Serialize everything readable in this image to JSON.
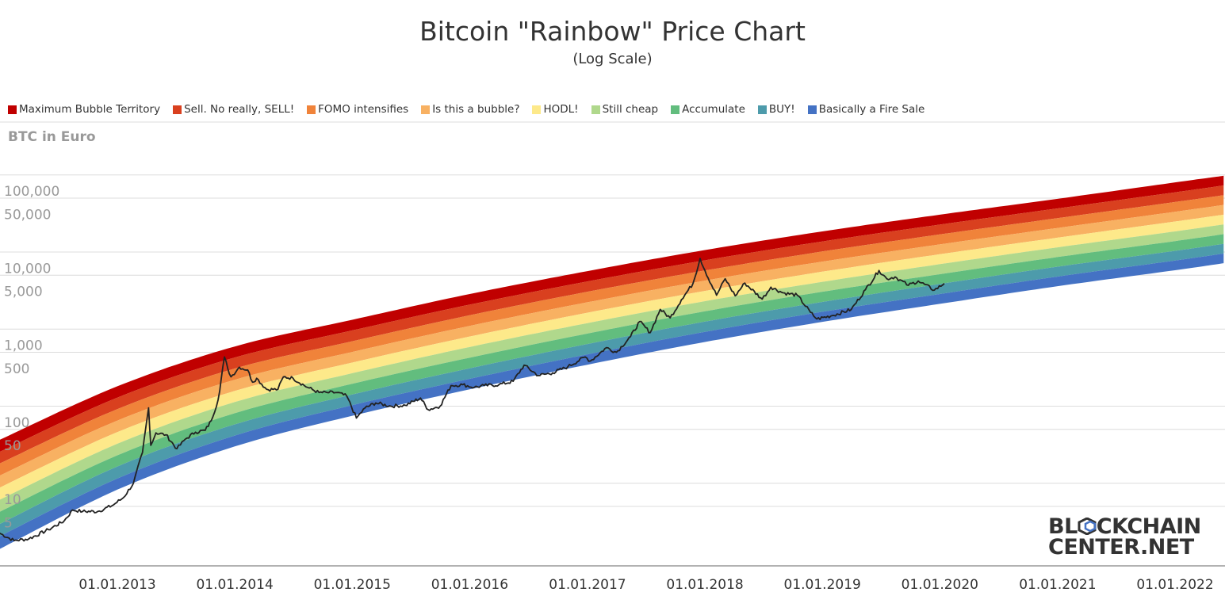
{
  "chart_data": {
    "type": "area",
    "title": "Bitcoin \"Rainbow\" Price Chart",
    "subtitle": "(Log Scale)",
    "ylabel": "BTC in Euro",
    "xlabel": "",
    "y_scale": "log",
    "ylim": [
      1.1,
      350000
    ],
    "xlim": [
      "2012-01-01",
      "2022-06-01"
    ],
    "grid": "horizontal",
    "legend_position": "top-left",
    "y_ticks": [
      {
        "value": 100000,
        "label": "100,000"
      },
      {
        "value": 50000,
        "label": "50,000"
      },
      {
        "value": 10000,
        "label": "10,000"
      },
      {
        "value": 5000,
        "label": "5,000"
      },
      {
        "value": 1000,
        "label": "1,000"
      },
      {
        "value": 500,
        "label": "500"
      },
      {
        "value": 100,
        "label": "100"
      },
      {
        "value": 50,
        "label": "50"
      },
      {
        "value": 10,
        "label": "10"
      },
      {
        "value": 5,
        "label": "5"
      }
    ],
    "x_ticks": [
      {
        "date": "2013-01-01",
        "label": "01.01.2013"
      },
      {
        "date": "2014-01-01",
        "label": "01.01.2014"
      },
      {
        "date": "2015-01-01",
        "label": "01.01.2015"
      },
      {
        "date": "2016-01-01",
        "label": "01.01.2016"
      },
      {
        "date": "2017-01-01",
        "label": "01.01.2017"
      },
      {
        "date": "2018-01-01",
        "label": "01.01.2018"
      },
      {
        "date": "2019-01-01",
        "label": "01.01.2019"
      },
      {
        "date": "2020-01-01",
        "label": "01.01.2020"
      },
      {
        "date": "2021-01-01",
        "label": "01.01.2021"
      },
      {
        "date": "2022-01-01",
        "label": "01.01.2022"
      }
    ],
    "bands": [
      {
        "name": "Maximum Bubble Territory",
        "color": "#c00000"
      },
      {
        "name": "Sell. No really, SELL!",
        "color": "#d9401f"
      },
      {
        "name": "FOMO intensifies",
        "color": "#f0833a"
      },
      {
        "name": "Is this a bubble?",
        "color": "#f8b162"
      },
      {
        "name": "HODL!",
        "color": "#fde98a"
      },
      {
        "name": "Still cheap",
        "color": "#b0d88c"
      },
      {
        "name": "Accumulate",
        "color": "#62bd7e"
      },
      {
        "name": "BUY!",
        "color": "#4d9bab"
      },
      {
        "name": "Basically a Fire Sale",
        "color": "#4472c4"
      }
    ],
    "band_boundaries": [
      {
        "date": "2012-01-01",
        "values": [
          73,
          51,
          36,
          25,
          17.5,
          12.2,
          8.5,
          5.9,
          4.1,
          2.8
        ]
      },
      {
        "date": "2013-01-01",
        "values": [
          362,
          258,
          183,
          130,
          92,
          65,
          46,
          33,
          23,
          16.5
        ]
      },
      {
        "date": "2014-01-01",
        "values": [
          1190,
          855,
          615,
          440,
          315,
          226,
          162,
          116,
          83,
          60
        ]
      },
      {
        "date": "2015-01-01",
        "values": [
          2640,
          1920,
          1390,
          1010,
          735,
          535,
          390,
          283,
          206,
          150
        ]
      },
      {
        "date": "2016-01-01",
        "values": [
          5700,
          4150,
          3020,
          2200,
          1600,
          1170,
          850,
          620,
          452,
          330
        ]
      },
      {
        "date": "2017-01-01",
        "values": [
          11300,
          8300,
          6100,
          4450,
          3260,
          2390,
          1750,
          1280,
          940,
          690
        ]
      },
      {
        "date": "2018-01-01",
        "values": [
          21200,
          15600,
          11500,
          8500,
          6250,
          4600,
          3400,
          2500,
          1840,
          1360
        ]
      },
      {
        "date": "2019-01-01",
        "values": [
          37000,
          27400,
          20300,
          15000,
          11100,
          8200,
          6100,
          4500,
          3350,
          2480
        ]
      },
      {
        "date": "2020-01-01",
        "values": [
          61000,
          45400,
          33800,
          25100,
          18700,
          13900,
          10300,
          7700,
          5700,
          4250
        ]
      },
      {
        "date": "2021-01-01",
        "values": [
          98000,
          73500,
          55000,
          41000,
          30700,
          23000,
          17200,
          12900,
          9600,
          7200
        ]
      },
      {
        "date": "2022-01-01",
        "values": [
          160000,
          119000,
          89000,
          66500,
          49700,
          37000,
          27700,
          20700,
          15500,
          11600
        ]
      },
      {
        "date": "2022-06-01",
        "values": [
          195000,
          146000,
          109000,
          81500,
          61000,
          45600,
          34100,
          25500,
          19100,
          14300
        ]
      }
    ],
    "series": [
      {
        "values": [
          [
            "2012-01-01",
            4.5
          ],
          [
            "2012-02-15",
            3.6
          ],
          [
            "2012-04-01",
            3.8
          ],
          [
            "2012-06-01",
            5.0
          ],
          [
            "2012-07-20",
            6.5
          ],
          [
            "2012-08-15",
            9.0
          ],
          [
            "2012-09-15",
            8.6
          ],
          [
            "2012-11-01",
            8.6
          ],
          [
            "2012-12-15",
            10.2
          ],
          [
            "2013-01-20",
            13
          ],
          [
            "2013-02-20",
            20
          ],
          [
            "2013-03-20",
            50
          ],
          [
            "2013-04-08",
            190
          ],
          [
            "2013-04-15",
            62
          ],
          [
            "2013-05-01",
            90
          ],
          [
            "2013-06-01",
            85
          ],
          [
            "2013-07-05",
            56
          ],
          [
            "2013-08-01",
            75
          ],
          [
            "2013-09-01",
            92
          ],
          [
            "2013-10-01",
            97
          ],
          [
            "2013-10-20",
            130
          ],
          [
            "2013-11-10",
            240
          ],
          [
            "2013-11-30",
            870
          ],
          [
            "2013-12-10",
            620
          ],
          [
            "2013-12-20",
            480
          ],
          [
            "2014-01-15",
            640
          ],
          [
            "2014-02-10",
            590
          ],
          [
            "2014-02-25",
            410
          ],
          [
            "2014-03-10",
            460
          ],
          [
            "2014-04-10",
            330
          ],
          [
            "2014-05-15",
            330
          ],
          [
            "2014-06-01",
            480
          ],
          [
            "2014-07-01",
            460
          ],
          [
            "2014-08-15",
            350
          ],
          [
            "2014-09-20",
            300
          ],
          [
            "2014-10-15",
            300
          ],
          [
            "2014-11-15",
            300
          ],
          [
            "2014-12-15",
            270
          ],
          [
            "2015-01-14",
            140
          ],
          [
            "2015-02-10",
            190
          ],
          [
            "2015-03-15",
            220
          ],
          [
            "2015-05-01",
            200
          ],
          [
            "2015-06-15",
            205
          ],
          [
            "2015-08-01",
            255
          ],
          [
            "2015-08-25",
            180
          ],
          [
            "2015-10-01",
            200
          ],
          [
            "2015-11-04",
            370
          ],
          [
            "2015-12-10",
            380
          ],
          [
            "2016-01-15",
            350
          ],
          [
            "2016-02-15",
            370
          ],
          [
            "2016-04-01",
            380
          ],
          [
            "2016-05-15",
            420
          ],
          [
            "2016-06-18",
            680
          ],
          [
            "2016-08-01",
            500
          ],
          [
            "2016-09-15",
            540
          ],
          [
            "2016-11-01",
            650
          ],
          [
            "2016-12-25",
            870
          ],
          [
            "2017-01-10",
            770
          ],
          [
            "2017-03-01",
            1150
          ],
          [
            "2017-04-01",
            1000
          ],
          [
            "2017-05-15",
            1600
          ],
          [
            "2017-06-12",
            2500
          ],
          [
            "2017-07-15",
            1800
          ],
          [
            "2017-08-15",
            3600
          ],
          [
            "2017-09-15",
            2800
          ],
          [
            "2017-10-20",
            4800
          ],
          [
            "2017-11-25",
            7800
          ],
          [
            "2017-12-17",
            16500
          ],
          [
            "2018-01-01",
            11500
          ],
          [
            "2018-02-06",
            5500
          ],
          [
            "2018-03-05",
            9000
          ],
          [
            "2018-04-05",
            5400
          ],
          [
            "2018-05-05",
            7900
          ],
          [
            "2018-06-28",
            4900
          ],
          [
            "2018-07-25",
            7000
          ],
          [
            "2018-09-01",
            5900
          ],
          [
            "2018-10-15",
            5500
          ],
          [
            "2018-11-25",
            3300
          ],
          [
            "2018-12-15",
            2700
          ],
          [
            "2019-02-01",
            3000
          ],
          [
            "2019-04-01",
            3600
          ],
          [
            "2019-05-15",
            6500
          ],
          [
            "2019-06-26",
            11500
          ],
          [
            "2019-07-20",
            9000
          ],
          [
            "2019-08-15",
            9500
          ],
          [
            "2019-09-25",
            7400
          ],
          [
            "2019-10-26",
            8400
          ],
          [
            "2019-12-15",
            6400
          ],
          [
            "2020-01-15",
            7800
          ]
        ]
      }
    ]
  },
  "logo": {
    "line1_a": "BL",
    "line1_b": "CKCHAIN",
    "line2": "CENTER.NET"
  }
}
